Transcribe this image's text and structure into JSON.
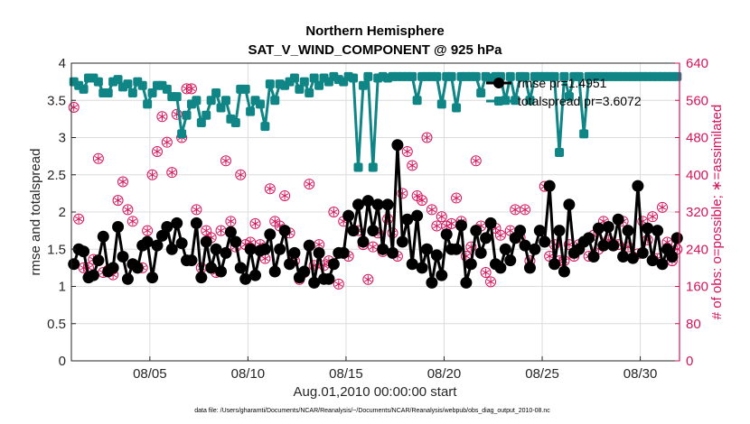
{
  "chart_data": {
    "type": "line",
    "title_line1": "Northern Hemisphere",
    "title_line2": "SAT_V_WIND_COMPONENT @ 925 hPa",
    "xlabel": "Aug.01,2010 00:00:00 start",
    "ylabel_left": "rmse and totalspread",
    "ylabel_right": "# of obs: o=possible; ∗=assimilated",
    "footnote": "data file: /Users/gharamti/Documents/NCAR/Reanalysis/~/Documents/NCAR/Reanalysis/webpub/obs_diag_output_2010-08.nc",
    "x_range": [
      1.0,
      32.0
    ],
    "y_left_range": [
      0,
      4
    ],
    "y_right_range": [
      0,
      640
    ],
    "x_ticks": [
      {
        "v": 5,
        "label": "08/05"
      },
      {
        "v": 10,
        "label": "08/10"
      },
      {
        "v": 15,
        "label": "08/15"
      },
      {
        "v": 20,
        "label": "08/20"
      },
      {
        "v": 25,
        "label": "08/25"
      },
      {
        "v": 30,
        "label": "08/30"
      }
    ],
    "y_left_ticks": [
      {
        "v": 0,
        "label": "0"
      },
      {
        "v": 0.5,
        "label": "0.5"
      },
      {
        "v": 1,
        "label": "1"
      },
      {
        "v": 1.5,
        "label": "1.5"
      },
      {
        "v": 2,
        "label": "2"
      },
      {
        "v": 2.5,
        "label": "2.5"
      },
      {
        "v": 3,
        "label": "3"
      },
      {
        "v": 3.5,
        "label": "3.5"
      },
      {
        "v": 4,
        "label": "4"
      }
    ],
    "y_right_ticks": [
      {
        "v": 0,
        "label": "0"
      },
      {
        "v": 80,
        "label": "80"
      },
      {
        "v": 160,
        "label": "160"
      },
      {
        "v": 240,
        "label": "240"
      },
      {
        "v": 320,
        "label": "320"
      },
      {
        "v": 400,
        "label": "400"
      },
      {
        "v": 480,
        "label": "480"
      },
      {
        "v": 560,
        "label": "560"
      },
      {
        "v": 640,
        "label": "640"
      }
    ],
    "colors": {
      "rmse": "#000000",
      "spread": "#0f8585",
      "obs": "#d4145a",
      "axis_right": "#d4145a"
    },
    "x": [
      1.125,
      1.375,
      1.625,
      1.875,
      2.125,
      2.375,
      2.625,
      2.875,
      3.125,
      3.375,
      3.625,
      3.875,
      4.125,
      4.375,
      4.625,
      4.875,
      5.125,
      5.375,
      5.625,
      5.875,
      6.125,
      6.375,
      6.625,
      6.875,
      7.125,
      7.375,
      7.625,
      7.875,
      8.125,
      8.375,
      8.625,
      8.875,
      9.125,
      9.375,
      9.625,
      9.875,
      10.125,
      10.375,
      10.625,
      10.875,
      11.125,
      11.375,
      11.625,
      11.875,
      12.125,
      12.375,
      12.625,
      12.875,
      13.125,
      13.375,
      13.625,
      13.875,
      14.125,
      14.375,
      14.625,
      14.875,
      15.125,
      15.375,
      15.625,
      15.875,
      16.125,
      16.375,
      16.625,
      16.875,
      17.125,
      17.375,
      17.625,
      17.875,
      18.125,
      18.375,
      18.625,
      18.875,
      19.125,
      19.375,
      19.625,
      19.875,
      20.125,
      20.375,
      20.625,
      20.875,
      21.125,
      21.375,
      21.625,
      21.875,
      22.125,
      22.375,
      22.625,
      22.875,
      23.125,
      23.375,
      23.625,
      23.875,
      24.125,
      24.375,
      24.625,
      24.875,
      25.125,
      25.375,
      25.625,
      25.875,
      26.125,
      26.375,
      26.625,
      26.875,
      27.125,
      27.375,
      27.625,
      27.875,
      28.125,
      28.375,
      28.625,
      28.875,
      29.125,
      29.375,
      29.625,
      29.875,
      30.125,
      30.375,
      30.625,
      30.875,
      31.125,
      31.375,
      31.625,
      31.875
    ],
    "series": [
      {
        "name": "rmse pr=1.4951",
        "axis": "left",
        "marker": "circle",
        "values": [
          1.3,
          1.5,
          1.47,
          1.12,
          1.15,
          1.35,
          1.67,
          1.2,
          1.25,
          1.8,
          1.4,
          1.1,
          1.3,
          1.25,
          1.55,
          1.6,
          1.12,
          1.55,
          1.68,
          1.8,
          1.5,
          1.85,
          1.58,
          1.35,
          1.35,
          1.85,
          1.12,
          1.6,
          1.25,
          1.5,
          1.2,
          1.45,
          1.73,
          1.6,
          1.25,
          1.1,
          1.5,
          1.15,
          1.48,
          1.5,
          1.7,
          1.2,
          1.5,
          1.75,
          1.3,
          1.45,
          1.12,
          1.2,
          1.55,
          1.05,
          1.45,
          1.1,
          1.1,
          1.3,
          1.45,
          1.45,
          1.95,
          1.75,
          2.1,
          1.6,
          2.15,
          1.75,
          2.1,
          1.5,
          2.1,
          1.45,
          2.9,
          1.6,
          1.9,
          1.3,
          1.95,
          1.25,
          1.5,
          1.05,
          1.42,
          1.15,
          1.7,
          1.5,
          1.5,
          1.82,
          1.05,
          1.3,
          1.75,
          1.45,
          1.65,
          1.85,
          1.3,
          1.25,
          1.5,
          1.35,
          1.65,
          1.75,
          1.55,
          1.25,
          1.5,
          1.75,
          1.6,
          2.35,
          1.3,
          1.75,
          1.2,
          2.1,
          1.45,
          1.5,
          1.6,
          1.65,
          1.4,
          1.78,
          1.55,
          1.8,
          1.55,
          1.9,
          1.4,
          1.75,
          1.38,
          2.35,
          1.45,
          1.78,
          1.35,
          1.75,
          1.3,
          1.5,
          1.4,
          1.65
        ]
      },
      {
        "name": "totalspread pr=3.6072",
        "axis": "left",
        "marker": "square",
        "values": [
          3.75,
          3.7,
          3.65,
          3.8,
          3.8,
          3.75,
          3.6,
          3.6,
          3.75,
          3.78,
          3.68,
          3.72,
          3.6,
          3.75,
          3.7,
          3.45,
          3.6,
          3.7,
          3.7,
          3.65,
          3.55,
          3.55,
          3.05,
          3.3,
          3.45,
          3.5,
          3.2,
          3.3,
          3.5,
          3.6,
          3.4,
          3.5,
          3.25,
          3.2,
          3.65,
          3.65,
          3.35,
          3.5,
          3.45,
          3.15,
          3.72,
          3.5,
          3.72,
          3.7,
          3.75,
          3.8,
          3.65,
          3.75,
          3.6,
          3.8,
          3.7,
          3.8,
          3.75,
          3.82,
          3.78,
          3.75,
          3.82,
          3.8,
          2.6,
          3.7,
          3.82,
          2.6,
          3.8,
          3.82,
          3.8,
          3.82,
          3.82,
          3.82,
          3.82,
          3.82,
          3.5,
          3.82,
          3.82,
          3.82,
          3.82,
          3.45,
          3.82,
          3.82,
          3.4,
          3.82,
          3.82,
          3.82,
          3.82,
          3.6,
          3.82,
          3.8,
          3.82,
          3.82,
          3.5,
          3.82,
          3.5,
          3.82,
          3.82,
          3.5,
          3.82,
          3.82,
          3.82,
          3.82,
          3.82,
          2.8,
          3.82,
          3.55,
          3.82,
          3.82,
          3.05,
          3.82,
          3.82,
          3.82,
          3.82,
          3.82,
          3.82,
          3.82,
          3.82,
          3.82,
          3.82,
          3.82,
          3.82,
          3.82,
          3.82,
          3.82,
          3.82,
          3.82,
          3.82,
          3.82
        ]
      },
      {
        "name": "# obs possible",
        "axis": "right",
        "marker": "open-circle",
        "values": [
          545,
          305,
          200,
          200,
          218,
          435,
          190,
          195,
          185,
          345,
          385,
          325,
          300,
          200,
          200,
          280,
          400,
          450,
          525,
          470,
          405,
          530,
          480,
          585,
          585,
          325,
          200,
          280,
          265,
          190,
          280,
          430,
          300,
          245,
          400,
          250,
          255,
          295,
          250,
          220,
          370,
          300,
          290,
          355,
          275,
          215,
          175,
          190,
          380,
          205,
          250,
          205,
          215,
          320,
          165,
          300,
          225,
          280,
          280,
          250,
          175,
          245,
          275,
          235,
          305,
          275,
          225,
          360,
          450,
          420,
          355,
          345,
          480,
          325,
          290,
          310,
          290,
          295,
          350,
          300,
          225,
          245,
          430,
          290,
          190,
          170,
          285,
          270,
          240,
          280,
          325,
          265,
          325,
          215,
          240,
          280,
          375,
          225,
          250,
          215,
          215,
          250,
          225,
          250,
          255,
          225,
          270,
          240,
          300,
          260,
          250,
          250,
          300,
          245,
          220,
          230,
          300,
          260,
          310,
          220,
          330,
          255,
          215,
          240
        ],
        "values2": [
          null,
          null,
          null,
          null,
          null,
          null,
          null,
          null,
          null,
          null,
          null,
          null,
          null,
          null,
          null,
          null,
          null,
          null,
          null,
          null,
          null,
          null,
          null,
          null,
          null,
          null,
          null,
          null,
          null,
          null,
          null,
          null,
          null,
          null,
          null,
          null,
          null,
          null,
          null,
          null,
          null,
          null,
          null,
          null,
          null,
          null,
          null,
          null,
          null,
          null,
          null,
          null,
          null,
          null,
          null,
          null,
          null,
          null,
          null,
          null,
          null,
          null,
          null,
          null,
          null,
          null,
          null,
          null,
          null,
          null,
          null,
          null,
          null,
          null,
          null,
          null,
          null,
          null,
          null,
          null,
          null,
          null,
          null,
          null,
          null,
          null,
          null,
          null,
          null,
          null,
          null,
          null,
          null,
          null,
          null,
          null,
          null,
          null,
          null,
          null,
          null,
          null,
          null,
          null,
          null,
          null,
          null,
          null,
          null,
          null,
          null,
          null,
          null,
          null,
          null,
          null,
          null,
          null,
          null,
          null,
          null,
          null,
          null,
          null
        ]
      },
      {
        "name": "# obs assimilated",
        "axis": "right",
        "marker": "asterisk",
        "values": [
          545,
          305,
          200,
          200,
          218,
          435,
          190,
          195,
          185,
          345,
          385,
          325,
          300,
          200,
          200,
          280,
          400,
          450,
          525,
          470,
          405,
          530,
          480,
          585,
          585,
          325,
          200,
          280,
          265,
          190,
          280,
          430,
          300,
          245,
          400,
          250,
          255,
          295,
          250,
          220,
          370,
          300,
          290,
          355,
          275,
          215,
          175,
          190,
          380,
          205,
          250,
          205,
          215,
          320,
          165,
          300,
          225,
          280,
          280,
          250,
          175,
          245,
          275,
          235,
          305,
          275,
          225,
          360,
          450,
          420,
          355,
          345,
          480,
          325,
          290,
          310,
          290,
          295,
          350,
          300,
          225,
          245,
          430,
          290,
          190,
          170,
          285,
          270,
          240,
          280,
          325,
          265,
          325,
          215,
          240,
          280,
          375,
          225,
          250,
          215,
          215,
          250,
          225,
          250,
          255,
          225,
          270,
          240,
          300,
          260,
          250,
          250,
          300,
          245,
          220,
          230,
          300,
          260,
          310,
          220,
          330,
          255,
          215,
          240
        ]
      }
    ],
    "legend": [
      {
        "label": "rmse pr=1.4951"
      },
      {
        "label": "totalspread pr=3.6072"
      }
    ],
    "legend_position": "top-right"
  }
}
